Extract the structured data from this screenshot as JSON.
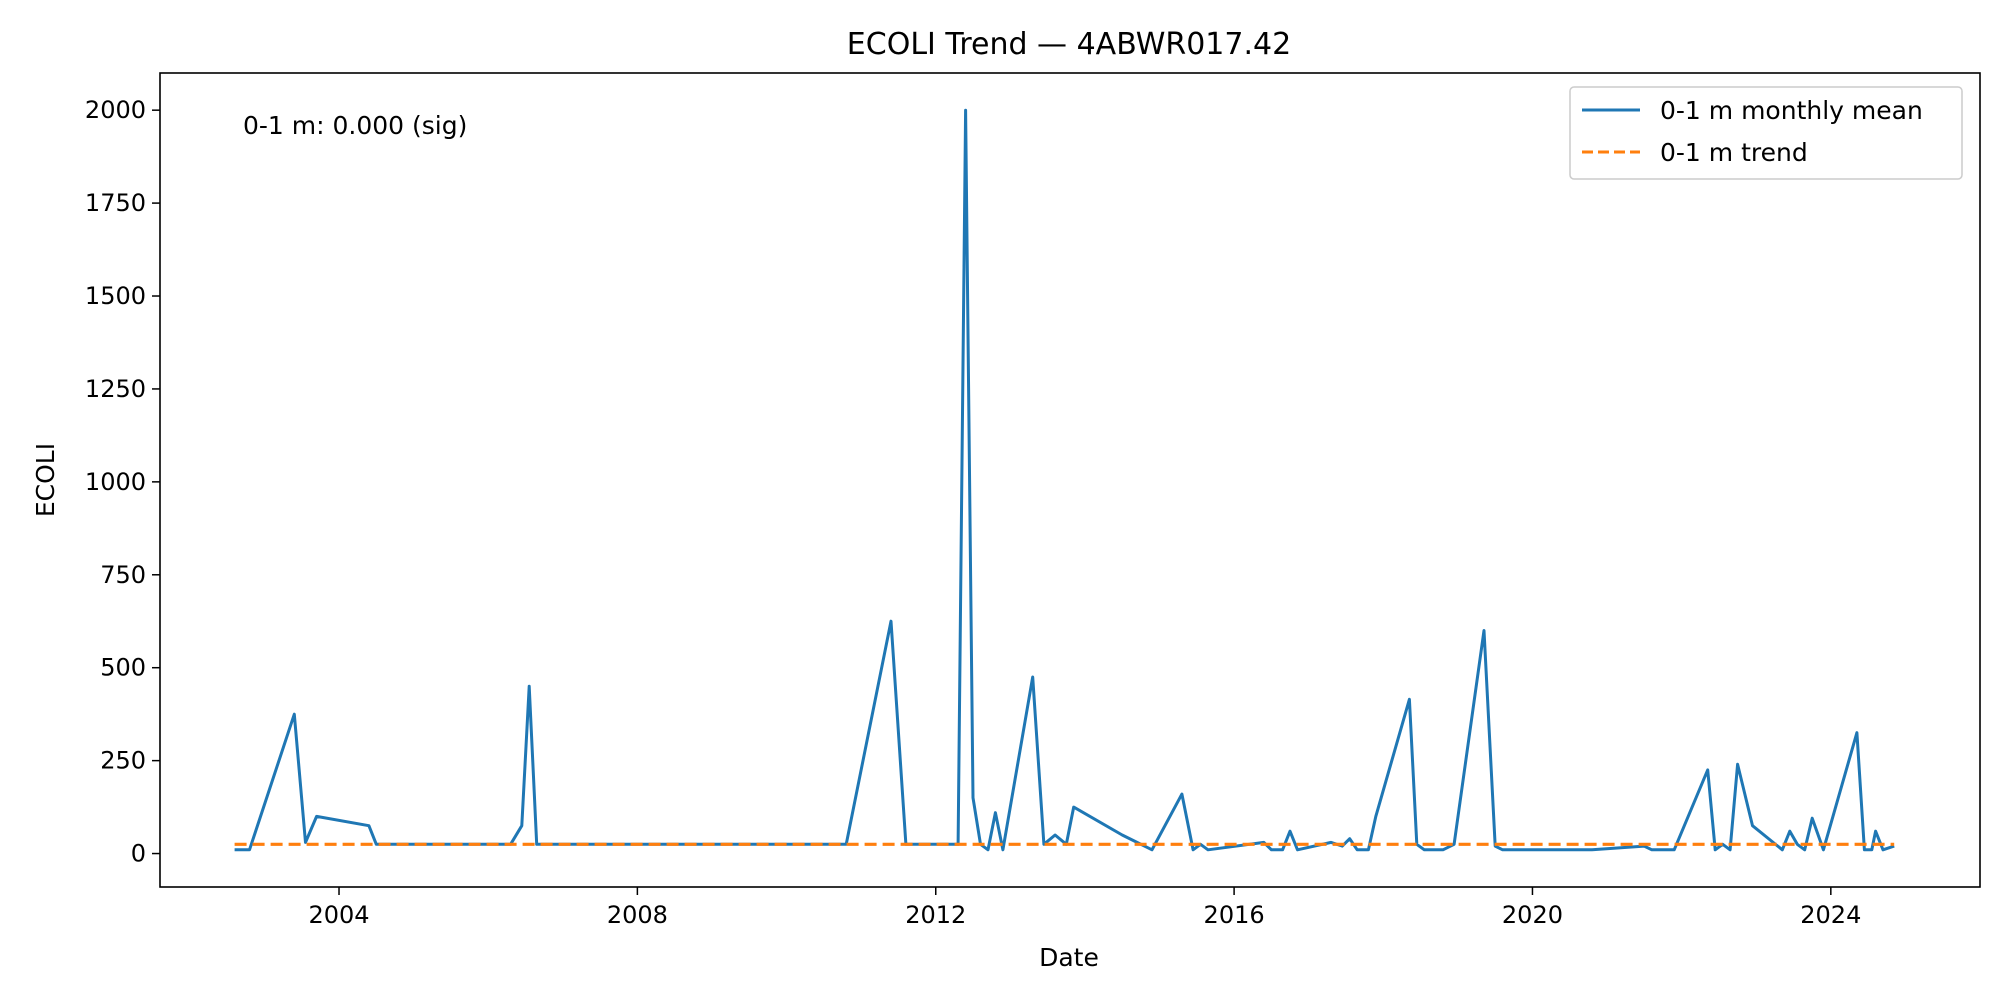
{
  "chart_data": {
    "type": "line",
    "title": "ECOLI Trend — 4ABWR017.42",
    "xlabel": "Date",
    "ylabel": "ECOLI",
    "annotation": "0-1 m: 0.000 (sig)",
    "xlim": [
      2001.6,
      2026.0
    ],
    "ylim": [
      -90,
      2100
    ],
    "xticks": [
      2004,
      2008,
      2012,
      2016,
      2020,
      2024
    ],
    "xtick_labels": [
      "2004",
      "2008",
      "2012",
      "2016",
      "2020",
      "2024"
    ],
    "yticks": [
      0,
      250,
      500,
      750,
      1000,
      1250,
      1500,
      1750,
      2000
    ],
    "ytick_labels": [
      "0",
      "250",
      "500",
      "750",
      "1000",
      "1250",
      "1500",
      "1750",
      "2000"
    ],
    "grid": false,
    "legend_position": "top-right",
    "colors": {
      "series": "#1f77b4",
      "trend": "#ff7f0e"
    },
    "series": [
      {
        "name": "0-1 m monthly mean",
        "style": "solid",
        "x": [
          2002.6,
          2002.8,
          2003.4,
          2003.55,
          2003.7,
          2004.4,
          2004.5,
          2006.3,
          2006.45,
          2006.55,
          2006.65,
          2010.8,
          2011.4,
          2011.6,
          2012.3,
          2012.4,
          2012.5,
          2012.6,
          2012.7,
          2012.8,
          2012.9,
          2013.3,
          2013.45,
          2013.6,
          2013.75,
          2013.85,
          2014.5,
          2014.9,
          2015.3,
          2015.45,
          2015.55,
          2015.65,
          2016.4,
          2016.5,
          2016.65,
          2016.75,
          2016.85,
          2017.3,
          2017.45,
          2017.55,
          2017.65,
          2017.8,
          2017.9,
          2018.35,
          2018.45,
          2018.55,
          2018.8,
          2018.95,
          2019.35,
          2019.5,
          2019.6,
          2020.8,
          2021.5,
          2021.6,
          2021.9,
          2022.35,
          2022.45,
          2022.55,
          2022.65,
          2022.75,
          2022.95,
          2023.35,
          2023.45,
          2023.55,
          2023.65,
          2023.75,
          2023.9,
          2024.35,
          2024.45,
          2024.55,
          2024.6,
          2024.7,
          2024.85
        ],
        "y": [
          10,
          10,
          375,
          30,
          100,
          75,
          25,
          25,
          75,
          450,
          25,
          25,
          625,
          25,
          25,
          2000,
          150,
          25,
          10,
          110,
          10,
          475,
          25,
          50,
          25,
          125,
          50,
          10,
          160,
          10,
          25,
          10,
          30,
          10,
          10,
          60,
          10,
          30,
          20,
          40,
          10,
          10,
          100,
          415,
          25,
          10,
          10,
          25,
          600,
          20,
          10,
          10,
          20,
          10,
          10,
          225,
          10,
          25,
          10,
          240,
          75,
          10,
          60,
          25,
          10,
          95,
          10,
          325,
          10,
          10,
          60,
          10,
          20
        ]
      },
      {
        "name": "0-1 m trend",
        "style": "dashed",
        "x": [
          2002.6,
          2024.85
        ],
        "y": [
          25,
          25
        ]
      }
    ]
  }
}
